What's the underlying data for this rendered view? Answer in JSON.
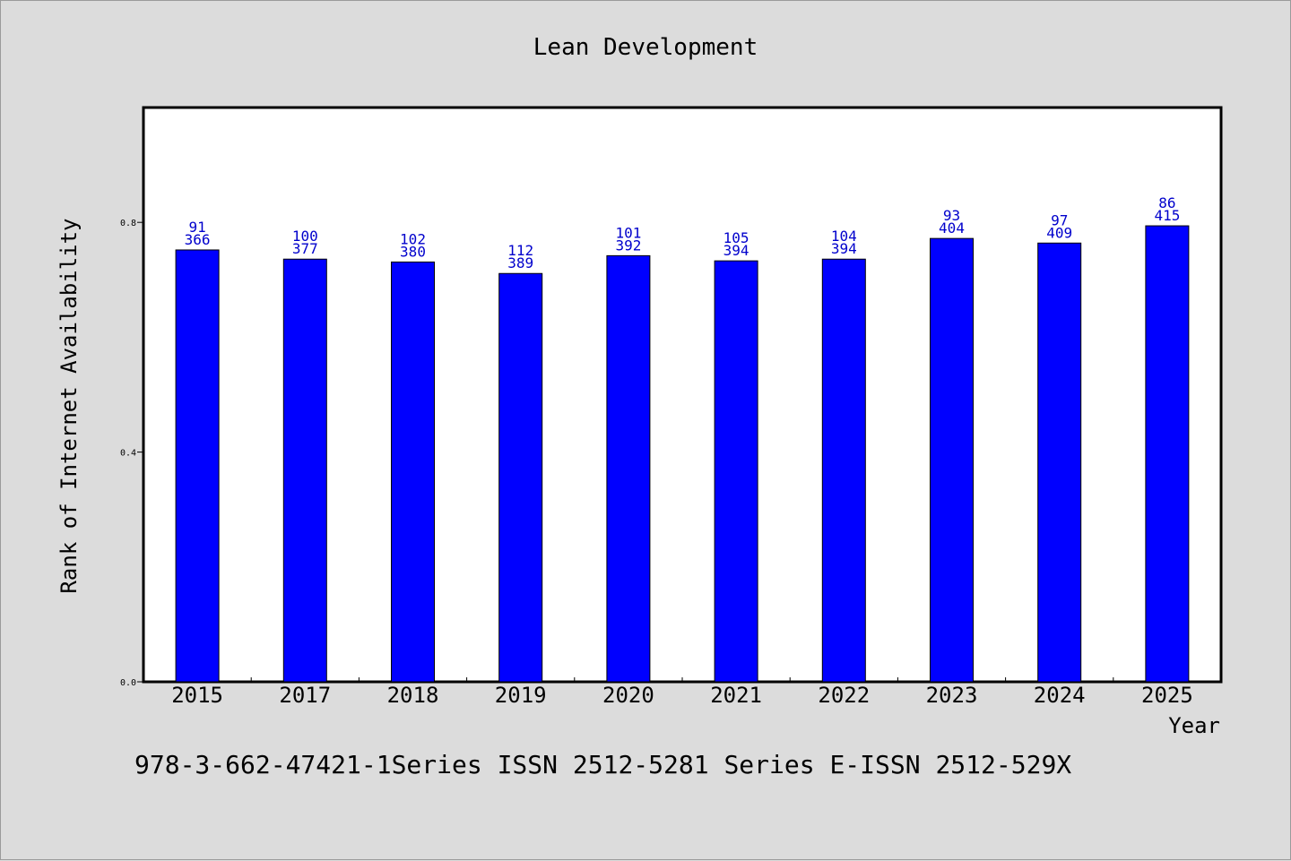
{
  "chart_data": {
    "type": "bar",
    "title": "Lean Development",
    "xlabel": "Year",
    "ylabel": "Rank of Internet Availability",
    "categories": [
      "2015",
      "2017",
      "2018",
      "2019",
      "2020",
      "2021",
      "2022",
      "2023",
      "2024",
      "2025"
    ],
    "values": [
      0.752,
      0.736,
      0.731,
      0.711,
      0.742,
      0.733,
      0.736,
      0.772,
      0.764,
      0.794
    ],
    "labels_top": [
      "91",
      "100",
      "102",
      "112",
      "101",
      "105",
      "104",
      "93",
      "97",
      "86"
    ],
    "labels_bottom": [
      "366",
      "377",
      "380",
      "389",
      "392",
      "394",
      "394",
      "404",
      "409",
      "415"
    ],
    "ylim": [
      0.0,
      1.0
    ],
    "yticks": [
      0.0,
      0.4,
      0.8
    ],
    "ytick_labels": [
      "0.0",
      "0.4",
      "0.8"
    ],
    "grid": false,
    "colors": {
      "bar": "#0000ff",
      "bar_label": "#0000cc",
      "background": "#dcdcdc",
      "plot_bg": "#ffffff"
    }
  },
  "footer": {
    "text": "978-3-662-47421-1Series ISSN 2512-5281 Series E-ISSN 2512-529X"
  }
}
